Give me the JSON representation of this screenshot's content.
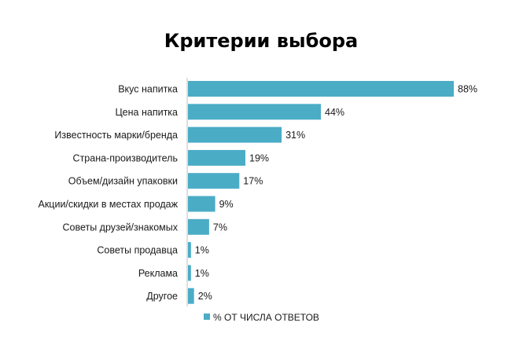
{
  "chart_data": {
    "type": "bar",
    "orientation": "horizontal",
    "title": "Критерии выбора",
    "categories": [
      "Вкус напитка",
      "Цена напитка",
      "Известность марки/бренда",
      "Страна-производитель",
      "Объем/дизайн упаковки",
      "Акции/скидки в местах продаж",
      "Советы друзей/знакомых",
      "Советы продавца",
      "Реклама",
      "Другое"
    ],
    "series": [
      {
        "name": "% ОТ ЧИСЛА ОТВЕТОВ",
        "values": [
          88,
          44,
          31,
          19,
          17,
          9,
          7,
          1,
          1,
          2
        ],
        "value_labels": [
          "88%",
          "44%",
          "31%",
          "19%",
          "17%",
          "9%",
          "7%",
          "1%",
          "1%",
          "2%"
        ],
        "color": "#4bacc6"
      }
    ],
    "xlim": [
      0,
      88
    ],
    "grid": false,
    "legend": "bottom"
  }
}
